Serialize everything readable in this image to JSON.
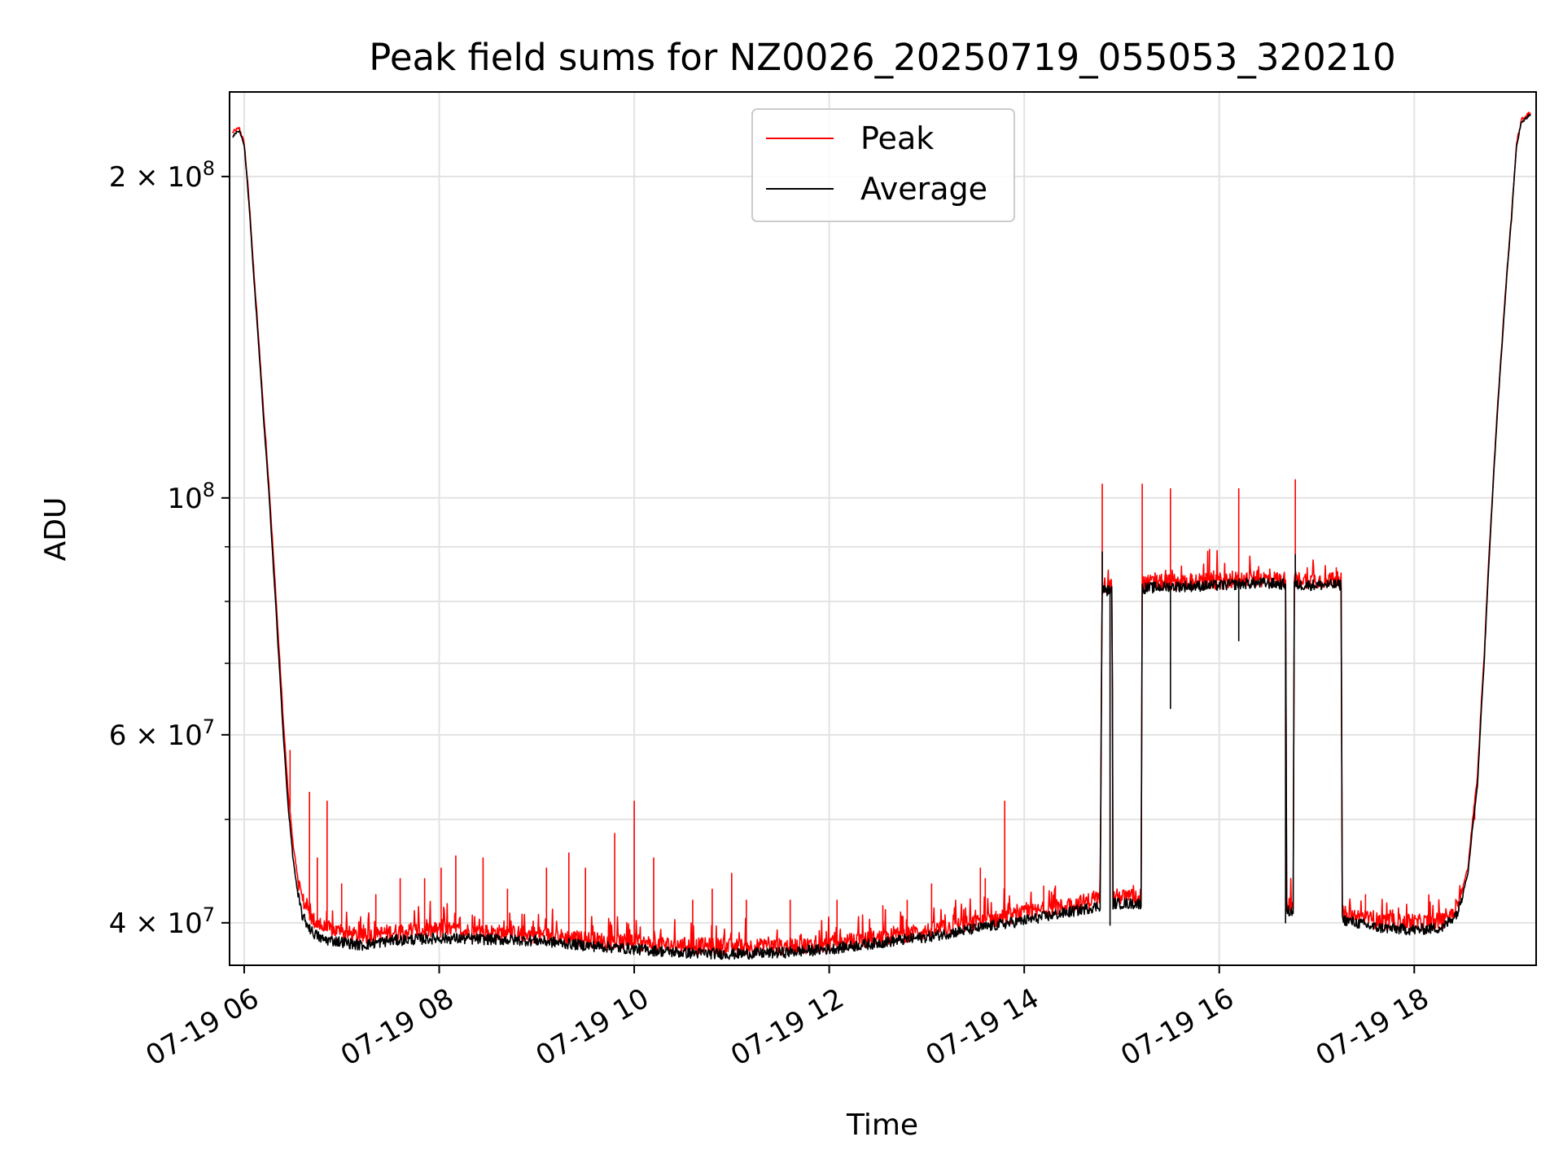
{
  "chart_data": {
    "type": "line",
    "title": "Peak field sums for NZ0026_20250719_055053_320210",
    "xlabel": "Time",
    "ylabel": "ADU",
    "x_unit": "hours (2025-07-19, local time of day)",
    "xlim": [
      5.85,
      19.25
    ],
    "ylim": [
      36500000,
      240000000
    ],
    "yscale": "log",
    "grid": true,
    "legend_position": "top-center",
    "x_ticks": [
      {
        "value": 6,
        "label": "07-19 06"
      },
      {
        "value": 8,
        "label": "07-19 08"
      },
      {
        "value": 10,
        "label": "07-19 10"
      },
      {
        "value": 12,
        "label": "07-19 12"
      },
      {
        "value": 14,
        "label": "07-19 14"
      },
      {
        "value": 16,
        "label": "07-19 16"
      },
      {
        "value": 18,
        "label": "07-19 18"
      }
    ],
    "y_ticks": [
      {
        "value": 200000000,
        "base": "2 × 10",
        "exp": "8"
      },
      {
        "value": 100000000,
        "base": "10",
        "exp": "8"
      },
      {
        "value": 60000000,
        "base": "6 × 10",
        "exp": "7"
      },
      {
        "value": 40000000,
        "base": "4 × 10",
        "exp": "7"
      }
    ],
    "y_minor_ticks": [
      50000000,
      70000000,
      80000000,
      90000000
    ],
    "series": [
      {
        "name": "Peak",
        "color": "#ff0000",
        "baseline": [
          [
            5.88,
            220000000
          ],
          [
            5.95,
            222000000
          ],
          [
            6.0,
            215000000
          ],
          [
            6.05,
            190000000
          ],
          [
            6.1,
            162000000
          ],
          [
            6.15,
            140000000
          ],
          [
            6.2,
            120000000
          ],
          [
            6.25,
            104000000
          ],
          [
            6.3,
            88000000
          ],
          [
            6.35,
            74000000
          ],
          [
            6.4,
            62000000
          ],
          [
            6.45,
            53000000
          ],
          [
            6.5,
            47500000
          ],
          [
            6.55,
            44000000
          ],
          [
            6.6,
            42000000
          ],
          [
            6.7,
            40300000
          ],
          [
            6.8,
            39600000
          ],
          [
            7.0,
            39200000
          ],
          [
            7.2,
            38800000
          ],
          [
            7.5,
            39200000
          ],
          [
            8.0,
            39400000
          ],
          [
            8.5,
            39200000
          ],
          [
            9.0,
            39000000
          ],
          [
            9.5,
            38600000
          ],
          [
            10.0,
            38300000
          ],
          [
            10.5,
            38100000
          ],
          [
            11.0,
            38000000
          ],
          [
            11.5,
            38000000
          ],
          [
            12.0,
            38200000
          ],
          [
            12.5,
            38700000
          ],
          [
            13.0,
            39300000
          ],
          [
            13.5,
            40000000
          ],
          [
            14.0,
            40800000
          ],
          [
            14.5,
            41600000
          ],
          [
            14.78,
            42200000
          ],
          [
            14.8,
            83000000
          ],
          [
            14.9,
            82800000
          ],
          [
            14.91,
            42300000
          ],
          [
            15.2,
            42300000
          ],
          [
            15.21,
            83200000
          ],
          [
            15.5,
            83400000
          ],
          [
            16.0,
            83600000
          ],
          [
            16.3,
            84000000
          ],
          [
            16.5,
            84000000
          ],
          [
            16.68,
            83800000
          ],
          [
            16.69,
            41500000
          ],
          [
            16.76,
            41500000
          ],
          [
            16.77,
            83800000
          ],
          [
            17.2,
            83800000
          ],
          [
            17.25,
            83800000
          ],
          [
            17.26,
            40800000
          ],
          [
            17.6,
            40200000
          ],
          [
            18.0,
            40000000
          ],
          [
            18.3,
            40200000
          ],
          [
            18.45,
            41500000
          ],
          [
            18.55,
            45000000
          ],
          [
            18.65,
            55000000
          ],
          [
            18.72,
            72000000
          ],
          [
            18.8,
            100000000
          ],
          [
            18.9,
            140000000
          ],
          [
            19.0,
            185000000
          ],
          [
            19.05,
            215000000
          ],
          [
            19.1,
            226000000
          ],
          [
            19.2,
            230000000
          ]
        ],
        "spikes": [
          [
            6.47,
            58000000
          ],
          [
            6.67,
            53000000
          ],
          [
            6.85,
            52000000
          ],
          [
            6.75,
            46000000
          ],
          [
            7.0,
            43500000
          ],
          [
            7.35,
            42500000
          ],
          [
            7.6,
            44000000
          ],
          [
            7.85,
            44000000
          ],
          [
            8.02,
            45000000
          ],
          [
            8.17,
            46200000
          ],
          [
            8.45,
            46000000
          ],
          [
            8.7,
            43000000
          ],
          [
            9.1,
            45000000
          ],
          [
            9.33,
            46500000
          ],
          [
            9.5,
            45000000
          ],
          [
            9.8,
            48500000
          ],
          [
            10.0,
            52000000
          ],
          [
            10.2,
            46000000
          ],
          [
            10.6,
            42000000
          ],
          [
            10.8,
            43000000
          ],
          [
            11.0,
            44500000
          ],
          [
            11.15,
            42000000
          ],
          [
            11.6,
            42000000
          ],
          [
            12.08,
            42000000
          ],
          [
            12.55,
            41500000
          ],
          [
            12.8,
            42000000
          ],
          [
            13.05,
            43500000
          ],
          [
            13.55,
            45000000
          ],
          [
            13.6,
            44000000
          ],
          [
            13.8,
            52000000
          ],
          [
            14.2,
            43300000
          ],
          [
            14.32,
            43300000
          ],
          [
            14.8,
            103000000
          ],
          [
            15.21,
            103000000
          ],
          [
            15.5,
            102000000
          ],
          [
            15.9,
            89500000
          ],
          [
            16.2,
            102000000
          ],
          [
            16.78,
            104000000
          ],
          [
            17.2,
            86000000
          ],
          [
            17.5,
            42500000
          ],
          [
            18.62,
            50000000
          ]
        ]
      },
      {
        "name": "Average",
        "color": "#000000",
        "baseline": [
          [
            5.88,
            218000000
          ],
          [
            5.95,
            221000000
          ],
          [
            6.0,
            214000000
          ],
          [
            6.05,
            188000000
          ],
          [
            6.1,
            160000000
          ],
          [
            6.15,
            138000000
          ],
          [
            6.2,
            118000000
          ],
          [
            6.25,
            102000000
          ],
          [
            6.3,
            86000000
          ],
          [
            6.35,
            72000000
          ],
          [
            6.4,
            60000000
          ],
          [
            6.45,
            51500000
          ],
          [
            6.5,
            46000000
          ],
          [
            6.55,
            42500000
          ],
          [
            6.6,
            40500000
          ],
          [
            6.7,
            39200000
          ],
          [
            6.8,
            38600000
          ],
          [
            7.0,
            38400000
          ],
          [
            7.2,
            38100000
          ],
          [
            7.5,
            38500000
          ],
          [
            8.0,
            38700000
          ],
          [
            8.5,
            38600000
          ],
          [
            9.0,
            38500000
          ],
          [
            9.5,
            38100000
          ],
          [
            10.0,
            37800000
          ],
          [
            10.5,
            37500000
          ],
          [
            11.0,
            37400000
          ],
          [
            11.5,
            37500000
          ],
          [
            12.0,
            37800000
          ],
          [
            12.5,
            38300000
          ],
          [
            13.0,
            38800000
          ],
          [
            13.5,
            39500000
          ],
          [
            14.0,
            40200000
          ],
          [
            14.5,
            41000000
          ],
          [
            14.78,
            41500000
          ],
          [
            14.8,
            82000000
          ],
          [
            14.9,
            81800000
          ],
          [
            14.91,
            41700000
          ],
          [
            15.2,
            41700000
          ],
          [
            15.21,
            82300000
          ],
          [
            15.5,
            82600000
          ],
          [
            16.0,
            82800000
          ],
          [
            16.3,
            83200000
          ],
          [
            16.5,
            83200000
          ],
          [
            16.68,
            83000000
          ],
          [
            16.69,
            41000000
          ],
          [
            16.76,
            41000000
          ],
          [
            16.77,
            82900000
          ],
          [
            17.2,
            82900000
          ],
          [
            17.25,
            82900000
          ],
          [
            17.26,
            40300000
          ],
          [
            17.6,
            39600000
          ],
          [
            18.0,
            39400000
          ],
          [
            18.3,
            39600000
          ],
          [
            18.45,
            41000000
          ],
          [
            18.55,
            44500000
          ],
          [
            18.65,
            54000000
          ],
          [
            18.72,
            71000000
          ],
          [
            18.8,
            99000000
          ],
          [
            18.9,
            139000000
          ],
          [
            19.0,
            184000000
          ],
          [
            19.05,
            214000000
          ],
          [
            19.1,
            225000000
          ],
          [
            19.2,
            229000000
          ]
        ],
        "spikes": [
          [
            14.8,
            89000000
          ],
          [
            14.88,
            39800000
          ],
          [
            15.5,
            63500000
          ],
          [
            16.2,
            73500000
          ],
          [
            16.68,
            40000000
          ],
          [
            16.78,
            88500000
          ]
        ]
      }
    ]
  }
}
